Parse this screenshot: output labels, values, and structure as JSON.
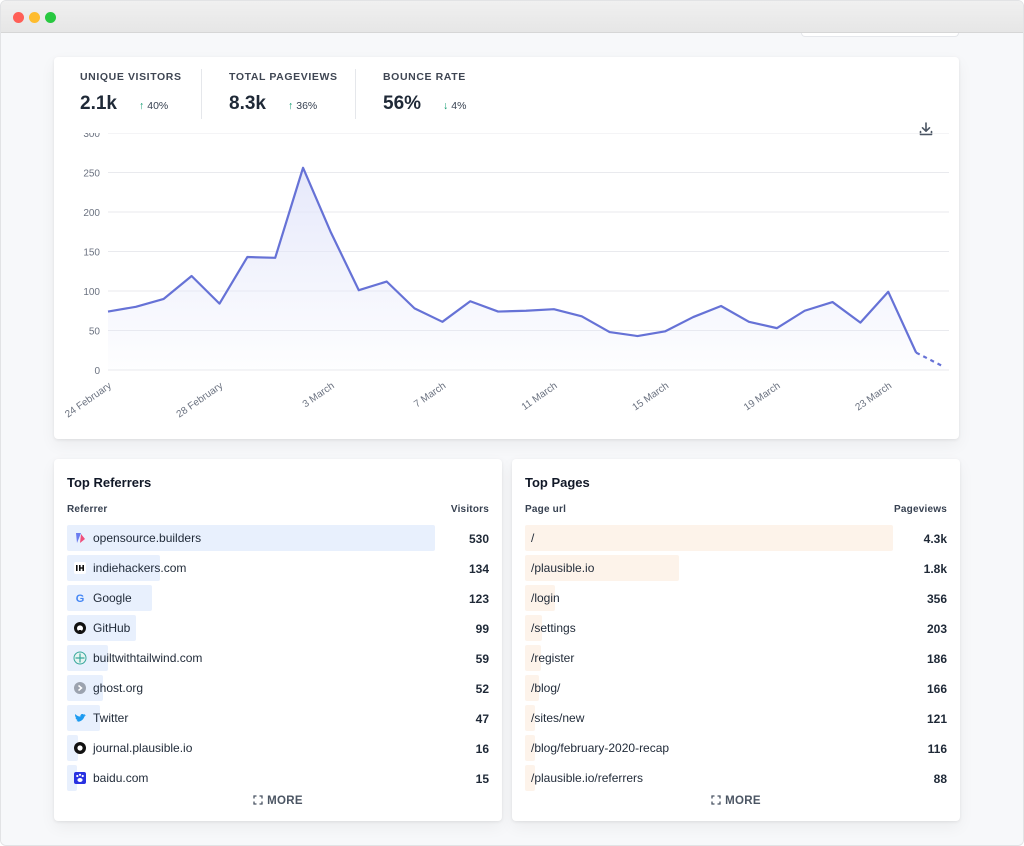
{
  "stats": [
    {
      "label": "UNIQUE VISITORS",
      "value": "2.1k",
      "direction": "up",
      "change": "40%"
    },
    {
      "label": "TOTAL PAGEVIEWS",
      "value": "8.3k",
      "direction": "up",
      "change": "36%"
    },
    {
      "label": "BOUNCE RATE",
      "value": "56%",
      "direction": "down",
      "change": "4%"
    }
  ],
  "icons": {
    "download": "download-icon",
    "expand": "expand-icon"
  },
  "colors": {
    "line": "#6672d6",
    "fill_top": "#e3e6fa",
    "referrer_bar": "#e8f0fd",
    "page_bar": "#fdf3ea",
    "positive": "#059669"
  },
  "chart_data": {
    "type": "area",
    "ylim": [
      0,
      300
    ],
    "yticks": [
      0,
      50,
      100,
      150,
      200,
      250,
      300
    ],
    "xtick_labels": [
      "24 February",
      "28 February",
      "3 March",
      "7 March",
      "11 March",
      "15 March",
      "19 March",
      "23 March"
    ],
    "xtick_index": [
      0,
      4,
      8,
      12,
      16,
      20,
      24,
      28
    ],
    "grid": true,
    "series": [
      {
        "values": [
          74,
          80,
          90,
          119,
          84,
          143,
          142,
          256,
          174,
          101,
          112,
          78,
          61,
          87,
          74,
          75,
          77,
          68,
          48,
          43,
          49,
          67,
          81,
          61,
          53,
          75,
          86,
          60,
          99,
          22,
          4
        ],
        "dashed_from_index": 29
      }
    ]
  },
  "referrers": {
    "title": "Top Referrers",
    "col_label": "Referrer",
    "col_value": "Visitors",
    "more": "MORE",
    "rows": [
      {
        "label": "opensource.builders",
        "value": "530",
        "count": 530,
        "icon": "opensource-builders-icon"
      },
      {
        "label": "indiehackers.com",
        "value": "134",
        "count": 134,
        "icon": "indiehackers-icon"
      },
      {
        "label": "Google",
        "value": "123",
        "count": 123,
        "icon": "google-icon"
      },
      {
        "label": "GitHub",
        "value": "99",
        "count": 99,
        "icon": "github-icon"
      },
      {
        "label": "builtwithtailwind.com",
        "value": "59",
        "count": 59,
        "icon": "builtwithtailwind-icon"
      },
      {
        "label": "ghost.org",
        "value": "52",
        "count": 52,
        "icon": "ghost-icon"
      },
      {
        "label": "Twitter",
        "value": "47",
        "count": 47,
        "icon": "twitter-icon"
      },
      {
        "label": "journal.plausible.io",
        "value": "16",
        "count": 16,
        "icon": "journal-plausible-icon"
      },
      {
        "label": "baidu.com",
        "value": "15",
        "count": 15,
        "icon": "baidu-icon"
      }
    ]
  },
  "pages": {
    "title": "Top Pages",
    "col_label": "Page url",
    "col_value": "Pageviews",
    "more": "MORE",
    "rows": [
      {
        "label": "/",
        "value": "4.3k",
        "count": 4300
      },
      {
        "label": "/plausible.io",
        "value": "1.8k",
        "count": 1800
      },
      {
        "label": "/login",
        "value": "356",
        "count": 356
      },
      {
        "label": "/settings",
        "value": "203",
        "count": 203
      },
      {
        "label": "/register",
        "value": "186",
        "count": 186
      },
      {
        "label": "/blog/",
        "value": "166",
        "count": 166
      },
      {
        "label": "/sites/new",
        "value": "121",
        "count": 121
      },
      {
        "label": "/blog/february-2020-recap",
        "value": "116",
        "count": 116
      },
      {
        "label": "/plausible.io/referrers",
        "value": "88",
        "count": 88
      }
    ]
  }
}
